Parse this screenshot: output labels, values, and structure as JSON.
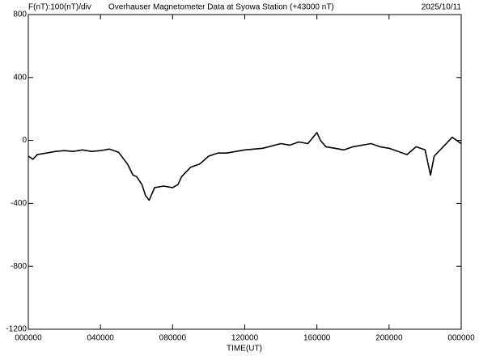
{
  "chart_data": {
    "type": "line",
    "scale_label": "F(nT):100(nT)/div",
    "title": "Overhauser Magnetometer Data at Syowa Station (+43000 nT)",
    "date": "2025/10/11",
    "x_label": "TIME(UT)",
    "xlim": [
      0,
      24
    ],
    "xticks": [
      {
        "value": 0,
        "label": "000000"
      },
      {
        "value": 4,
        "label": "040000"
      },
      {
        "value": 8,
        "label": "080000"
      },
      {
        "value": 12,
        "label": "120000"
      },
      {
        "value": 16,
        "label": "160000"
      },
      {
        "value": 20,
        "label": "200000"
      },
      {
        "value": 24,
        "label": "000000"
      }
    ],
    "ylim": [
      -1200,
      800
    ],
    "yticks": [
      -1200,
      -800,
      -400,
      0,
      400,
      800
    ],
    "series": [
      {
        "color": "#000000",
        "x": [
          0,
          0.25,
          0.5,
          1,
          1.5,
          2,
          2.5,
          3,
          3.5,
          4,
          4.5,
          5,
          5.5,
          5.8,
          6,
          6.3,
          6.5,
          6.7,
          7,
          7.5,
          8,
          8.3,
          8.5,
          9,
          9.5,
          10,
          10.5,
          11,
          12,
          13,
          14,
          14.5,
          15,
          15.5,
          16,
          16.2,
          16.5,
          17,
          17.5,
          18,
          19,
          19.5,
          20,
          21,
          21.5,
          22,
          22.3,
          22.5,
          23,
          23.5,
          24
        ],
        "values": [
          -100,
          -120,
          -90,
          -80,
          -70,
          -65,
          -70,
          -60,
          -70,
          -65,
          -55,
          -75,
          -150,
          -220,
          -230,
          -280,
          -350,
          -380,
          -300,
          -290,
          -300,
          -280,
          -230,
          -170,
          -150,
          -100,
          -80,
          -80,
          -60,
          -50,
          -20,
          -30,
          -10,
          -20,
          50,
          0,
          -40,
          -50,
          -60,
          -40,
          -20,
          -40,
          -50,
          -90,
          -40,
          -60,
          -220,
          -100,
          -40,
          20,
          -20
        ]
      }
    ]
  }
}
